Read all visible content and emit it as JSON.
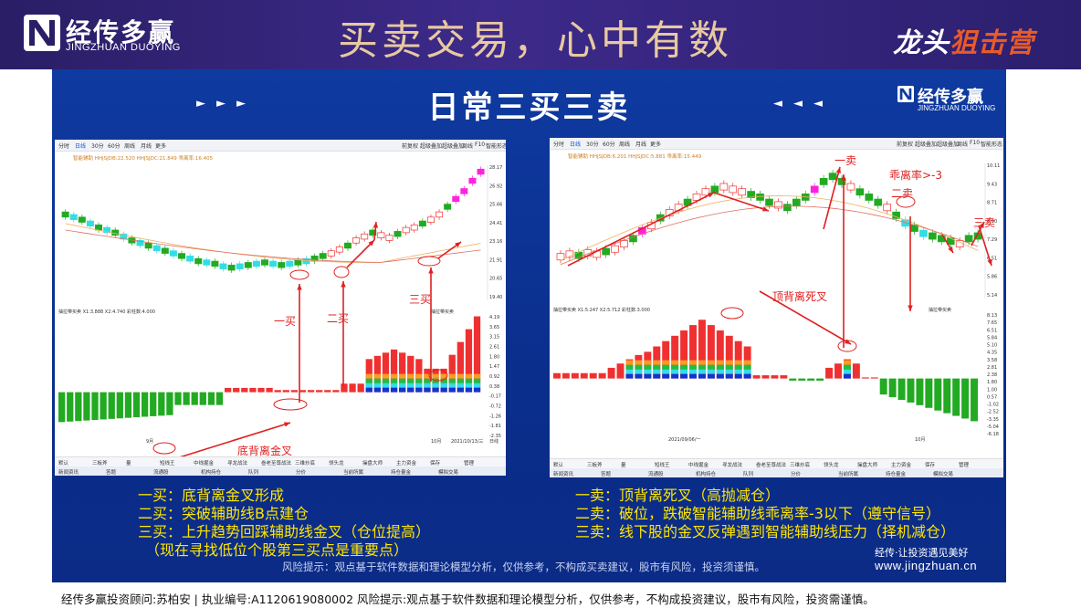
{
  "header": {
    "logo_cn": "经传多赢",
    "logo_en": "JINGZHUAN DUOYING",
    "headline": "买卖交易，心中有数",
    "brand_right_a": "龙头",
    "brand_right_b": "狙击营"
  },
  "panel": {
    "title": "日常三买三卖",
    "arrows_left": "►►►",
    "arrows_right": "◄◄◄",
    "logo_cn": "经传多赢",
    "logo_en": "JINGZHUAN DUOYING"
  },
  "left_chart": {
    "toolbar": [
      "分时",
      "日线",
      "30分",
      "60分",
      "周线",
      "月线",
      "更多"
    ],
    "toolbar_right": [
      "前复权",
      "超级叠加",
      "超级叠加",
      "周线",
      "F10",
      "智能形态"
    ],
    "indicator_line": "智能辅助  HHJSJDB:22.520  HHJSJDC:21.849  乖离率:16.405",
    "macd_line": "抽拉带买卖  X1:3.888  X2:4.740  彩柱数:4.000",
    "macd_right": "抽拉带买卖",
    "price_labels": [
      "28.17",
      "26.92",
      "25.66",
      "24.41",
      "23.16",
      "21.91",
      "20.65",
      "19.40"
    ],
    "macd_labels": [
      "4.19",
      "3.65",
      "3.15",
      "2.61",
      "1.80",
      "1.47",
      "0.92",
      "0.38",
      "-0.17",
      "-0.72",
      "-1.26",
      "-1.81",
      "-2.35"
    ],
    "date_label": "2021/10/13/三",
    "month_label": "10月",
    "sep_label": "9月",
    "day_label": "日线",
    "annotations": {
      "buy1": "一买",
      "buy2": "二买",
      "buy3": "三买",
      "bottom_cross": "底背离金叉"
    },
    "tabs_row1": [
      "默认",
      "三板斧",
      "量",
      "短线王",
      "中线掘金",
      "寻龙战法",
      "叁老至尊战法",
      "三维炒底",
      "领头龙",
      "操盘大师",
      "主力资金",
      "保存",
      "管理"
    ],
    "tabs_row2": [
      "新闻资讯",
      "答题",
      "流通股",
      "机构持仓",
      "队列",
      "分价",
      "当前所属",
      "持仓量金",
      "模拟交易"
    ]
  },
  "right_chart": {
    "toolbar": [
      "分时",
      "日线",
      "30分",
      "60分",
      "周线",
      "月线",
      "更多"
    ],
    "toolbar_right": [
      "前复权",
      "超级叠加",
      "超级叠加",
      "周线",
      "F10",
      "智能形态"
    ],
    "indicator_line": "智能辅助  HHJSJDB:6.201  HHJSJDC:5.881  乖离率:15.449",
    "macd_line": "抽拉带买卖  X1:5.247  X2:5.712  彩柱数:3.000",
    "macd_right": "抽拉带买卖",
    "price_labels": [
      "10.11",
      "9.43",
      "8.71",
      "8.00",
      "7.29",
      "6.51",
      "5.86",
      "5.14"
    ],
    "macd_labels": [
      "8.13",
      "7.65",
      "6.51",
      "5.84",
      "5.10",
      "4.35",
      "3.58",
      "2.81",
      "2.38",
      "1.80",
      "1.00",
      "0.57",
      "-1.02",
      "-2.52",
      "-3.35",
      "-5.04",
      "-6.18"
    ],
    "date_label": "2021/09/06/一",
    "month_label": "10月",
    "annotations": {
      "sell1": "一卖",
      "sell2": "二卖",
      "sell3": "三卖",
      "deviation": "乖离率>-3",
      "top_cross": "顶背离死叉"
    },
    "tabs_row1": [
      "默认",
      "三板斧",
      "量",
      "短线王",
      "中线掘金",
      "寻龙战法",
      "叁老至尊战法",
      "三维炒底",
      "领头龙",
      "操盘大师",
      "主力资金",
      "保存",
      "管理"
    ],
    "tabs_row2": [
      "新闻资讯",
      "答题",
      "流通股",
      "机构持仓",
      "队列",
      "分价",
      "当前所属",
      "持仓量金",
      "模拟交易"
    ]
  },
  "notes_left": [
    "一买：底背离金叉形成",
    "二买：突破辅助线B点建仓",
    "三买：上升趋势回踩辅助线金叉（仓位提高）",
    "　（现在寻找低位个股第三买点是重要点）"
  ],
  "notes_right": [
    "一卖：顶背离死叉（高抛减仓）",
    "二卖：破位，跌破智能辅助线乖离率-3以下（遵守信号）",
    "三卖：线下股的金叉反弹遇到智能辅助线压力（择机减仓）"
  ],
  "slogan": "经传·让投资遇见美好",
  "website": "www.jingzhuan.cn",
  "risk_inner": "风险提示：观点基于软件数据和理论模型分析，仅供参考，不构成买卖建议，股市有风险，投资须谨慎。",
  "footer": "经传多赢投资顾问:苏柏安 | 执业编号:A1120619080002  风险提示:观点基于软件数据和理论模型分析，仅供参考，不构成投资建议，股市有风险，投资需谨慎。",
  "colors": {
    "up": "#f03030",
    "down": "#22aa22",
    "cyan": "#33dde6",
    "magenta": "#ff22dd",
    "note": "#ffe600",
    "panel": "#0f3aa0"
  }
}
